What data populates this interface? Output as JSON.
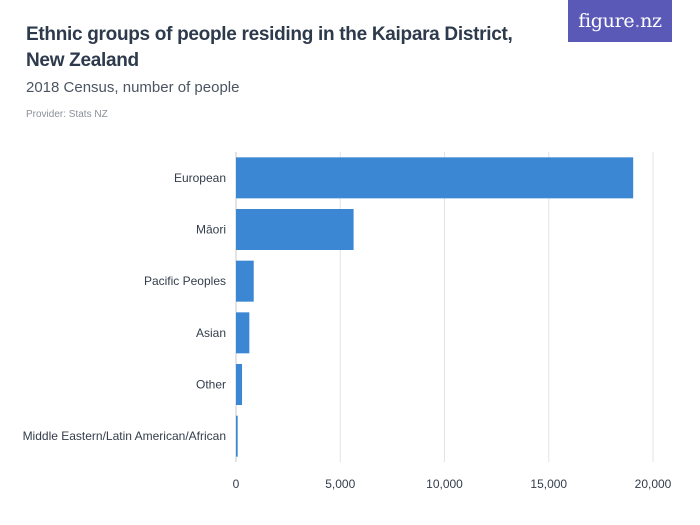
{
  "header": {
    "title": "Ethnic groups of people residing in the Kaipara District, New Zealand",
    "subtitle": "2018 Census, number of people",
    "provider": "Provider: Stats NZ",
    "logo_text": "figure",
    "logo_dot": ".",
    "logo_suffix": "nz"
  },
  "colors": {
    "bar": "#3b87d4",
    "logo_bg": "#5a59b8"
  },
  "chart_data": {
    "type": "bar",
    "orientation": "horizontal",
    "categories": [
      "European",
      "Māori",
      "Pacific Peoples",
      "Asian",
      "Other",
      "Middle Eastern/Latin American/African"
    ],
    "values": [
      19050,
      5640,
      850,
      640,
      290,
      80
    ],
    "xlim": [
      0,
      20000
    ],
    "xticks": [
      0,
      5000,
      10000,
      15000,
      20000
    ],
    "xtick_labels": [
      "0",
      "5,000",
      "10,000",
      "15,000",
      "20,000"
    ],
    "grid": true,
    "legend": "none"
  }
}
